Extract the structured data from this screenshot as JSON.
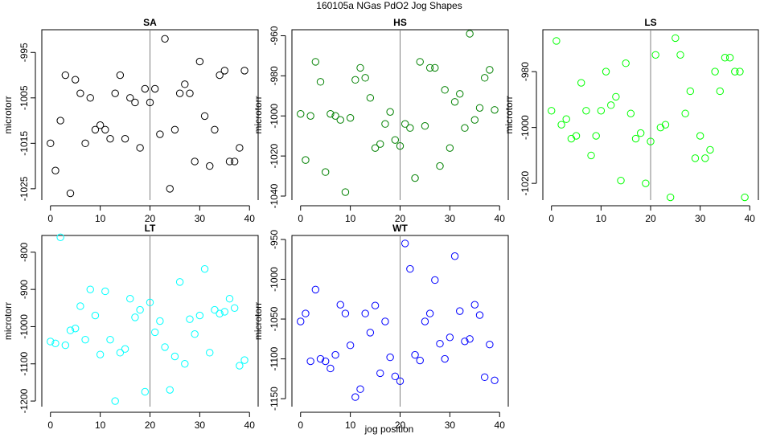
{
  "title": "160105a   NGas PdO2 Jog Shapes",
  "xlabel": "jog position",
  "chart_data": [
    {
      "type": "scatter",
      "title": "SA",
      "ylabel": "microtorr",
      "color": "#000000",
      "xlim": [
        0,
        40
      ],
      "ylim": [
        -1027.5,
        -990
      ],
      "xticks": [
        0,
        10,
        20,
        30,
        40
      ],
      "yticks": [
        -1025,
        -1015,
        -1005,
        -995
      ],
      "vline": 20,
      "x": [
        0,
        1,
        2,
        3,
        4,
        5,
        6,
        7,
        8,
        9,
        10,
        11,
        12,
        13,
        14,
        15,
        16,
        17,
        18,
        19,
        20,
        21,
        22,
        23,
        24,
        25,
        26,
        27,
        28,
        29,
        30,
        31,
        32,
        33,
        34,
        35,
        36,
        37,
        38,
        39
      ],
      "y": [
        -1015,
        -1021,
        -1010,
        -1000,
        -1026,
        -1001,
        -1004,
        -1015,
        -1005,
        -1012,
        -1011,
        -1012,
        -1014,
        -1004,
        -1000,
        -1014,
        -1005,
        -1006,
        -1016,
        -1003,
        -1006,
        -1003,
        -1013,
        -992,
        -1025,
        -1012,
        -1004,
        -1002,
        -1004,
        -1019,
        -997,
        -1009,
        -1020,
        -1012,
        -1000,
        -999,
        -1019,
        -1019,
        -1016,
        -999
      ]
    },
    {
      "type": "scatter",
      "title": "HS",
      "ylabel": "microtorr",
      "color": "#008000",
      "xlim": [
        0,
        40
      ],
      "ylim": [
        -1042,
        -957
      ],
      "xticks": [
        0,
        10,
        20,
        30,
        40
      ],
      "yticks": [
        -1040,
        -1020,
        -1000,
        -980,
        -960
      ],
      "vline": 20,
      "x": [
        0,
        1,
        2,
        3,
        4,
        5,
        6,
        7,
        8,
        9,
        10,
        11,
        12,
        13,
        14,
        15,
        16,
        17,
        18,
        19,
        20,
        21,
        22,
        23,
        24,
        25,
        26,
        27,
        28,
        29,
        30,
        31,
        32,
        33,
        34,
        35,
        36,
        37,
        38,
        39
      ],
      "y": [
        -999,
        -1022,
        -1000,
        -973,
        -983,
        -1028,
        -999,
        -1000,
        -1002,
        -1038,
        -1001,
        -982,
        -976,
        -981,
        -991,
        -1016,
        -1014,
        -1004,
        -998,
        -1012,
        -1015,
        -1004,
        -1006,
        -1031,
        -973,
        -1005,
        -976,
        -976,
        -1025,
        -987,
        -1016,
        -993,
        -989,
        -1006,
        -959,
        -1002,
        -996,
        -981,
        -977,
        -997
      ]
    },
    {
      "type": "scatter",
      "title": "LS",
      "ylabel": "microtorr",
      "color": "#00ff00",
      "xlim": [
        0,
        40
      ],
      "ylim": [
        -1026,
        -965
      ],
      "xticks": [
        0,
        10,
        20,
        30,
        40
      ],
      "yticks": [
        -1020,
        -1000,
        -980
      ],
      "vline": 20,
      "x": [
        0,
        1,
        2,
        3,
        4,
        5,
        6,
        7,
        8,
        9,
        10,
        11,
        12,
        13,
        14,
        15,
        16,
        17,
        18,
        19,
        20,
        21,
        22,
        23,
        24,
        25,
        26,
        27,
        28,
        29,
        30,
        31,
        32,
        33,
        34,
        35,
        36,
        37,
        38,
        39
      ],
      "y": [
        -994,
        -969,
        -999,
        -997,
        -1004,
        -1003,
        -984,
        -994,
        -1010,
        -1003,
        -994,
        -980,
        -992,
        -989,
        -1019,
        -977,
        -995,
        -1004,
        -1002,
        -1020,
        -1005,
        -974,
        -1000,
        -999,
        -1025,
        -968,
        -974,
        -995,
        -987,
        -1011,
        -1003,
        -1011,
        -1008,
        -980,
        -987,
        -975,
        -975,
        -980,
        -980,
        -1025
      ]
    },
    {
      "type": "scatter",
      "title": "LT",
      "ylabel": "microtorr",
      "color": "#00ffff",
      "xlim": [
        0,
        40
      ],
      "ylim": [
        -1215,
        -755
      ],
      "xticks": [
        0,
        10,
        20,
        30,
        40
      ],
      "yticks": [
        -1200,
        -1100,
        -1000,
        -900,
        -800
      ],
      "vline": 20,
      "x": [
        0,
        1,
        2,
        3,
        4,
        5,
        6,
        7,
        8,
        9,
        10,
        11,
        12,
        13,
        14,
        15,
        16,
        17,
        18,
        19,
        20,
        21,
        22,
        23,
        24,
        25,
        26,
        27,
        28,
        29,
        30,
        31,
        32,
        33,
        34,
        35,
        36,
        37,
        38,
        39
      ],
      "y": [
        -1040,
        -1045,
        -760,
        -1050,
        -1010,
        -1005,
        -945,
        -1035,
        -900,
        -970,
        -1075,
        -905,
        -1035,
        -1200,
        -1070,
        -1060,
        -925,
        -975,
        -955,
        -1175,
        -935,
        -1015,
        -985,
        -1055,
        -1170,
        -1080,
        -880,
        -1100,
        -980,
        -1020,
        -970,
        -845,
        -1070,
        -955,
        -965,
        -960,
        -925,
        -950,
        -1105,
        -1090
      ]
    },
    {
      "type": "scatter",
      "title": "WT",
      "ylabel": "microtorr",
      "color": "#0000ff",
      "xlim": [
        0,
        40
      ],
      "ylim": [
        -1160,
        -945
      ],
      "xticks": [
        0,
        10,
        20,
        30,
        40
      ],
      "yticks": [
        -1150,
        -1100,
        -1050,
        -1000,
        -950
      ],
      "vline": 20,
      "x": [
        0,
        1,
        2,
        3,
        4,
        5,
        6,
        7,
        8,
        9,
        10,
        11,
        12,
        13,
        14,
        15,
        16,
        17,
        18,
        19,
        20,
        21,
        22,
        23,
        24,
        25,
        26,
        27,
        28,
        29,
        30,
        31,
        32,
        33,
        34,
        35,
        36,
        37,
        38,
        39
      ],
      "y": [
        -1053,
        -1043,
        -1103,
        -1013,
        -1100,
        -1103,
        -1112,
        -1095,
        -1032,
        -1043,
        -1083,
        -1148,
        -1138,
        -1043,
        -1067,
        -1033,
        -1118,
        -1053,
        -1098,
        -1122,
        -1128,
        -955,
        -987,
        -1095,
        -1102,
        -1053,
        -1043,
        -1001,
        -1081,
        -1100,
        -1073,
        -971,
        -1040,
        -1078,
        -1075,
        -1032,
        -1045,
        -1123,
        -1082,
        -1127
      ]
    }
  ]
}
